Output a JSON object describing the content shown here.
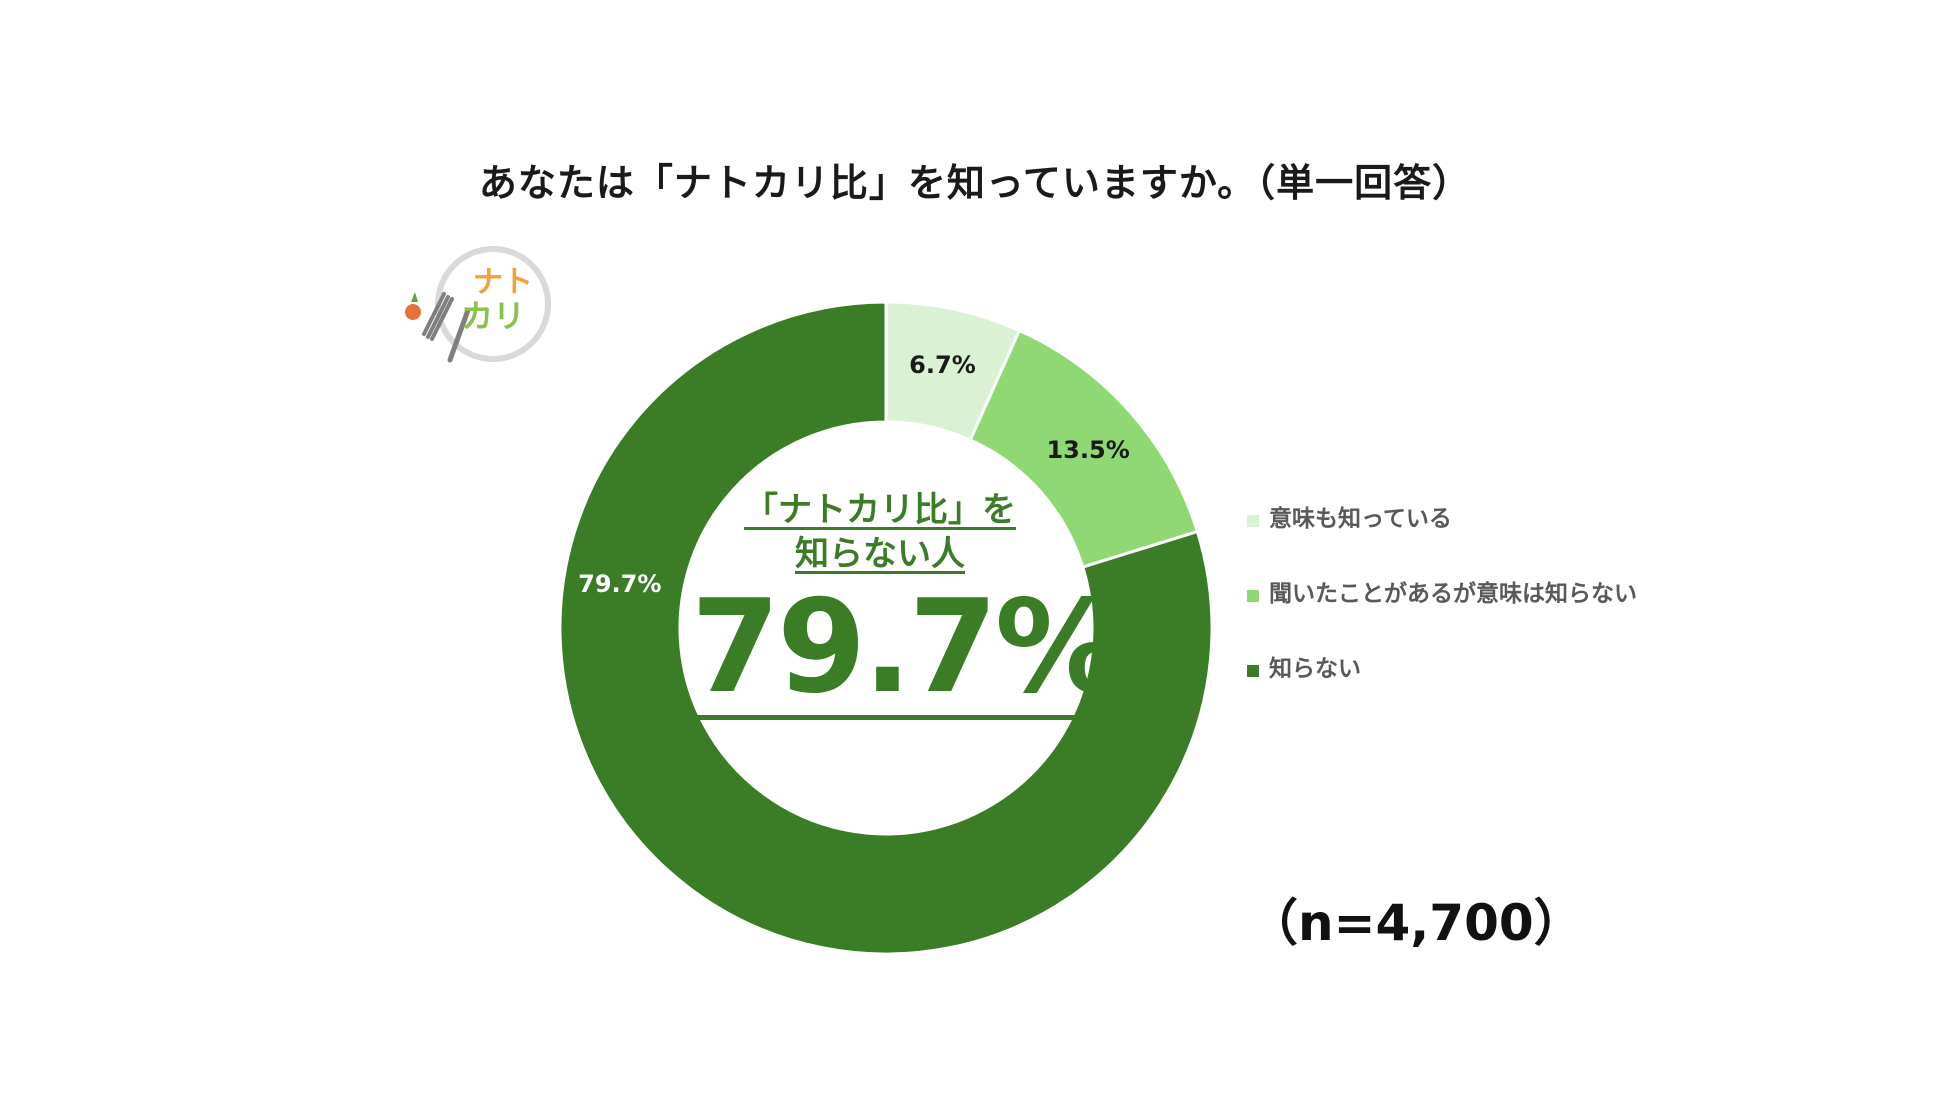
{
  "title": "あなたは「ナトカリ比」を知っていますか。（単一回答）",
  "logo": {
    "text_line1": "ナト",
    "text_line2": "カリ"
  },
  "center": {
    "caption_line1": "「ナトカリ比」を",
    "caption_line2": "知らない人",
    "value": "79.7%"
  },
  "sample_size": "（n=4,700）",
  "chart_data": {
    "type": "pie",
    "variant": "donut",
    "categories": [
      "意味も知っている",
      "聞いたことがあるが意味は知らない",
      "知らない"
    ],
    "values": [
      6.7,
      13.5,
      79.7
    ],
    "data_labels": [
      "6.7%",
      "13.5%",
      "79.7%"
    ],
    "colors": [
      "#daf1d4",
      "#90d873",
      "#3b7c26"
    ],
    "label_colors": [
      "#1a1a1a",
      "#1a1a1a",
      "#ffffff"
    ],
    "legend_placement": "right",
    "title": "あなたは「ナトカリ比」を知っていますか。（単一回答）"
  }
}
